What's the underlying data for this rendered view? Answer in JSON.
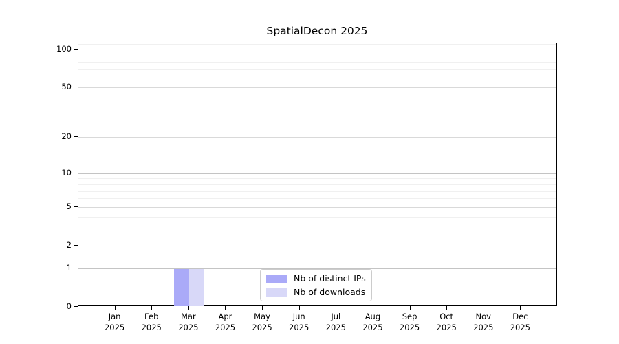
{
  "chart_data": {
    "type": "bar",
    "title": "SpatialDecon 2025",
    "categories": [
      "Jan",
      "Feb",
      "Mar",
      "Apr",
      "May",
      "Jun",
      "Jul",
      "Aug",
      "Sep",
      "Oct",
      "Nov",
      "Dec"
    ],
    "category_year": "2025",
    "series": [
      {
        "name": "Nb of distinct IPs",
        "color": "#aaaaf8",
        "values": [
          0,
          0,
          1,
          0,
          0,
          0,
          0,
          0,
          0,
          0,
          0,
          0
        ]
      },
      {
        "name": "Nb of downloads",
        "color": "#d8d8f8",
        "values": [
          0,
          0,
          1,
          0,
          0,
          0,
          0,
          0,
          0,
          0,
          0,
          0
        ]
      }
    ],
    "y_axis": {
      "scale": "log1p",
      "ticks": [
        0,
        1,
        2,
        5,
        10,
        20,
        50,
        100
      ],
      "minor_gridlines": [
        3,
        4,
        6,
        7,
        8,
        9,
        30,
        40,
        60,
        70,
        80,
        90,
        110
      ],
      "max": 112
    },
    "legend": {
      "position": "bottom-center"
    },
    "grid": true,
    "colors": {
      "axis": "#000000",
      "major_grid_strong": "#c4c4c4",
      "major_grid": "#d9d9d9",
      "minor_grid": "#f0f0f0"
    }
  }
}
